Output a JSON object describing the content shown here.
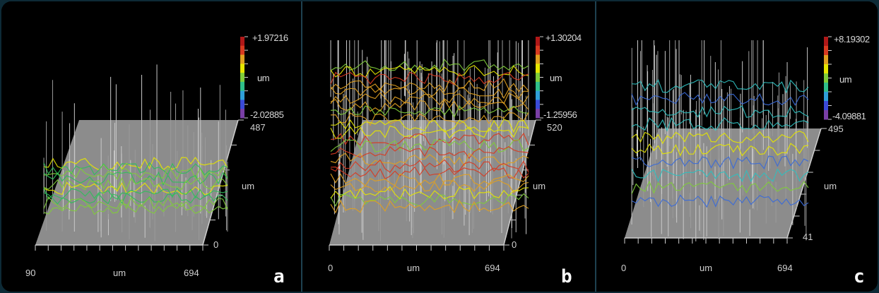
{
  "panels": [
    {
      "letter": "a",
      "colorbar": {
        "max": "+1.97216",
        "unit": "um",
        "min": "-2.02885"
      },
      "y_axis": {
        "top": "487",
        "unit": "um",
        "bottom": "0"
      },
      "x_axis": {
        "left": "90",
        "unit": "um",
        "right": "694"
      },
      "dominant_colors": [
        "#e6e600",
        "#7fcc3a",
        "#2fbf5a"
      ]
    },
    {
      "letter": "b",
      "colorbar": {
        "max": "+1.30204",
        "unit": "um",
        "min": "-1.25956"
      },
      "y_axis": {
        "top": "520",
        "unit": "um",
        "bottom": "0"
      },
      "x_axis": {
        "left": "0",
        "unit": "um",
        "right": "694"
      },
      "dominant_colors": [
        "#e6e600",
        "#7fcc3a",
        "#e0a020",
        "#d83a20"
      ]
    },
    {
      "letter": "c",
      "colorbar": {
        "max": "+8.19302",
        "unit": "um",
        "min": "-4.09881"
      },
      "y_axis": {
        "top": "495",
        "unit": "um",
        "bottom": "41"
      },
      "x_axis": {
        "left": "0",
        "unit": "um",
        "right": "694"
      },
      "dominant_colors": [
        "#2fbfbf",
        "#3a6ad8",
        "#7fcc3a",
        "#e6e600"
      ]
    }
  ],
  "colorbar_gradient": [
    "#7a3fa6",
    "#3a4ad8",
    "#2f9fd8",
    "#2fbf8a",
    "#7fcc3a",
    "#e6e600",
    "#e0a020",
    "#d83a20",
    "#b01818"
  ]
}
